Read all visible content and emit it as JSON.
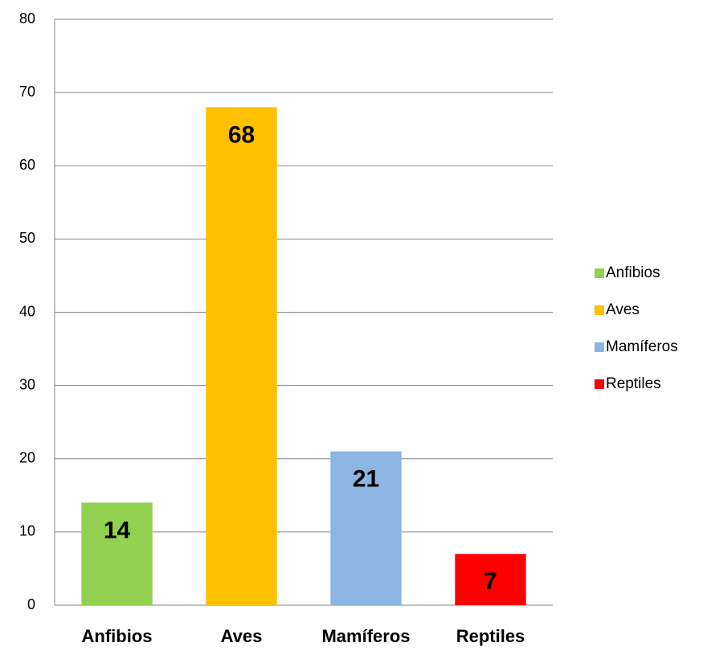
{
  "chart_data": {
    "type": "bar",
    "categories": [
      "Anfibios",
      "Aves",
      "Mamíferos",
      "Reptiles"
    ],
    "values": [
      14,
      68,
      21,
      7
    ],
    "colors": [
      "#92d050",
      "#ffc000",
      "#8db4e2",
      "#ff0000"
    ],
    "ylim": [
      0,
      80
    ],
    "yticks": [
      0,
      10,
      20,
      30,
      40,
      50,
      60,
      70,
      80
    ],
    "grid": true,
    "legend": "right"
  }
}
